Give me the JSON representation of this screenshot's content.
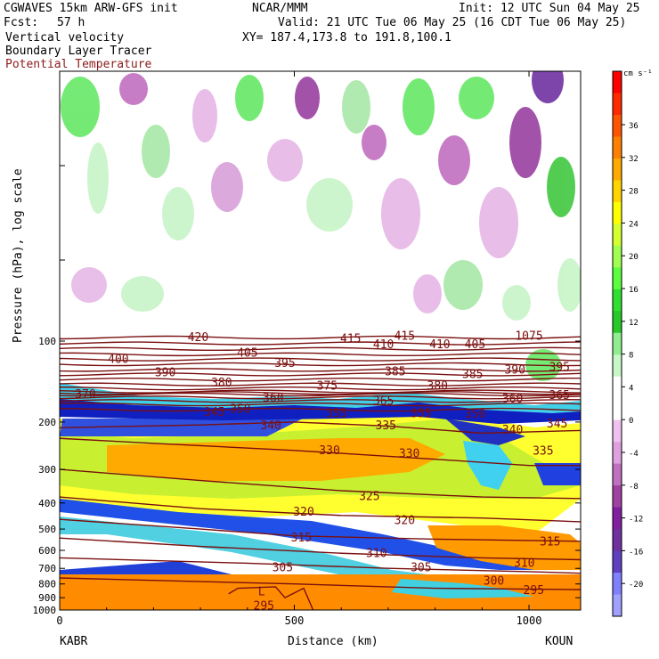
{
  "header": {
    "model": "CGWAVES 15km ARW-GFS init",
    "forecast_label": "Fcst:",
    "forecast_value": "57 h",
    "field1": "Vertical velocity",
    "field2": "Boundary Layer Tracer",
    "field3": "Potential Temperature",
    "org": "NCAR/MMM",
    "init": "Init: 12 UTC Sun 04 May 25",
    "valid": "Valid: 21 UTC Tue 06 May 25 (16 CDT Tue 06 May 25)",
    "xy": "XY= 187.4,173.8 to 191.8,100.1"
  },
  "colors": {
    "theta": "#7a0f0f",
    "frame": "#000000"
  },
  "chart_data": {
    "type": "cross-section",
    "xlabel": "Distance (km)",
    "ylabel": "Pressure (hPa), log scale",
    "x_range": [
      0,
      1110
    ],
    "x_ticks": [
      0,
      500,
      1000
    ],
    "x_end_labels": {
      "left": "KABR",
      "right": "KOUN"
    },
    "y_ticks_hPa": [
      100,
      200,
      300,
      400,
      500,
      600,
      700,
      800,
      900,
      1000
    ],
    "colorbar": {
      "units": "cm s⁻¹",
      "ticks": [
        36,
        32,
        28,
        24,
        20,
        16,
        12,
        8,
        4,
        0,
        -4,
        -8,
        -12,
        -16,
        -20
      ],
      "colors": [
        "#ff0000",
        "#ff2a00",
        "#ff5500",
        "#ff7f00",
        "#ffaa00",
        "#ffd400",
        "#ffff00",
        "#d4ff30",
        "#a0ff50",
        "#5cff40",
        "#30e030",
        "#28c828",
        "#90ee90",
        "#c8f7c8",
        "#ffffff",
        "#ffffff",
        "#f0c0f0",
        "#e0a0e0",
        "#c070c0",
        "#a040a0",
        "#8020a0",
        "#7030a0",
        "#6040c0",
        "#8080ff",
        "#a0a0ff"
      ]
    },
    "theta_labels": [
      {
        "text": "420",
        "x": 295,
        "p": 97
      },
      {
        "text": "415",
        "x": 735,
        "p": 96
      },
      {
        "text": "1075",
        "x": 1000,
        "p": 96
      },
      {
        "text": "405",
        "x": 400,
        "p": 111
      },
      {
        "text": "415",
        "x": 620,
        "p": 98
      },
      {
        "text": "410",
        "x": 690,
        "p": 103
      },
      {
        "text": "410",
        "x": 810,
        "p": 103
      },
      {
        "text": "405",
        "x": 885,
        "p": 103
      },
      {
        "text": "400",
        "x": 125,
        "p": 117
      },
      {
        "text": "395",
        "x": 480,
        "p": 121
      },
      {
        "text": "390",
        "x": 225,
        "p": 131
      },
      {
        "text": "385",
        "x": 715,
        "p": 130
      },
      {
        "text": "385",
        "x": 880,
        "p": 133
      },
      {
        "text": "390",
        "x": 970,
        "p": 128
      },
      {
        "text": "395",
        "x": 1065,
        "p": 125
      },
      {
        "text": "380",
        "x": 345,
        "p": 143
      },
      {
        "text": "375",
        "x": 570,
        "p": 147
      },
      {
        "text": "380",
        "x": 805,
        "p": 147
      },
      {
        "text": "370",
        "x": 55,
        "p": 158
      },
      {
        "text": "360",
        "x": 455,
        "p": 163
      },
      {
        "text": "365",
        "x": 690,
        "p": 167
      },
      {
        "text": "360",
        "x": 965,
        "p": 164
      },
      {
        "text": "365",
        "x": 1065,
        "p": 159
      },
      {
        "text": "350",
        "x": 385,
        "p": 179
      },
      {
        "text": "345",
        "x": 330,
        "p": 184
      },
      {
        "text": "355",
        "x": 590,
        "p": 186
      },
      {
        "text": "355",
        "x": 770,
        "p": 186
      },
      {
        "text": "350",
        "x": 885,
        "p": 187
      },
      {
        "text": "340",
        "x": 450,
        "p": 206
      },
      {
        "text": "335",
        "x": 695,
        "p": 206
      },
      {
        "text": "345",
        "x": 1060,
        "p": 203
      },
      {
        "text": "340",
        "x": 965,
        "p": 214
      },
      {
        "text": "330",
        "x": 575,
        "p": 255
      },
      {
        "text": "330",
        "x": 745,
        "p": 262
      },
      {
        "text": "335",
        "x": 1030,
        "p": 256
      },
      {
        "text": "325",
        "x": 660,
        "p": 378
      },
      {
        "text": "320",
        "x": 520,
        "p": 433
      },
      {
        "text": "320",
        "x": 735,
        "p": 465
      },
      {
        "text": "315",
        "x": 515,
        "p": 540
      },
      {
        "text": "315",
        "x": 1045,
        "p": 558
      },
      {
        "text": "310",
        "x": 675,
        "p": 616
      },
      {
        "text": "310",
        "x": 990,
        "p": 670
      },
      {
        "text": "305",
        "x": 475,
        "p": 697
      },
      {
        "text": "305",
        "x": 770,
        "p": 697
      },
      {
        "text": "300",
        "x": 925,
        "p": 780
      },
      {
        "text": "295",
        "x": 1010,
        "p": 845
      },
      {
        "text": "295",
        "x": 435,
        "p": 965
      },
      {
        "text": "L",
        "x": 430,
        "p": 855
      }
    ]
  }
}
